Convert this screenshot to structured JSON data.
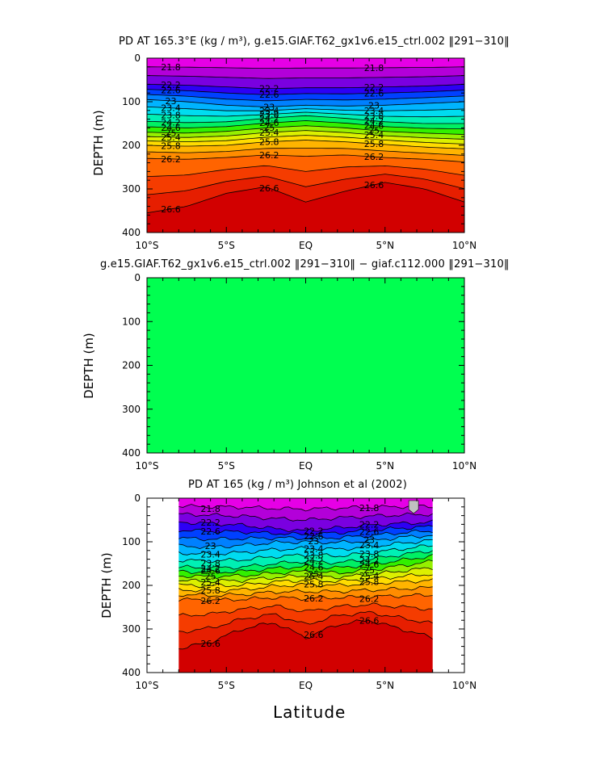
{
  "panels": [
    {
      "title": "PD AT 165.3°E (kg / m³), g.e15.GIAF.T62_gx1v6.e15_ctrl.002 ‖291−310‖",
      "ylabel": "DEPTH (m)",
      "xticks": [
        "10°S",
        "5°S",
        "EQ",
        "5°N",
        "10°N"
      ],
      "yticks": [
        "0",
        "100",
        "200",
        "300",
        "400"
      ]
    },
    {
      "title": "g.e15.GIAF.T62_gx1v6.e15_ctrl.002 ‖291−310‖ − giaf.c112.000 ‖291−310‖",
      "ylabel": "DEPTH (m)",
      "xticks": [
        "10°S",
        "5°S",
        "EQ",
        "5°N",
        "10°N"
      ],
      "yticks": [
        "0",
        "100",
        "200",
        "300",
        "400"
      ]
    },
    {
      "title": "PD AT 165 (kg / m³) Johnson et al (2002)",
      "ylabel": "DEPTH (m)",
      "xticks": [
        "10°S",
        "5°S",
        "EQ",
        "5°N",
        "10°N"
      ],
      "yticks": [
        "0",
        "100",
        "200",
        "300",
        "400"
      ]
    }
  ],
  "xlabel": "Latitude",
  "colors": {
    "levels": [
      "#e600e6",
      "#b300d9",
      "#7a00e0",
      "#2d00f5",
      "#0040ff",
      "#0080ff",
      "#00b4ff",
      "#00dcf0",
      "#00f0b4",
      "#00f064",
      "#32f000",
      "#96f000",
      "#dcf000",
      "#ffdc00",
      "#ffb400",
      "#ff8c00",
      "#ff6400",
      "#f53c00",
      "#e61e00",
      "#d20000"
    ],
    "difference_fill": "#00ff50",
    "missing": "#c0c0c0"
  },
  "chart_data": [
    {
      "type": "heatmap",
      "title": "PD AT 165.3°E (kg / m³), g.e15.GIAF.T62_gx1v6.e15_ctrl.002 ‖291−310‖",
      "ylabel": "DEPTH (m)",
      "xlim": [
        -10,
        10
      ],
      "ylim": [
        400,
        0
      ],
      "contour_labels": [
        "21.8",
        "22.2",
        "22.6",
        "23",
        "23.4",
        "23.8",
        "24.2",
        "24.6",
        "25",
        "25.4",
        "25.8",
        "26.2",
        "26.6"
      ],
      "isopycnal_depths": {
        "x": [
          -10,
          -7.5,
          -5,
          -2.5,
          0,
          2.5,
          5,
          7.5,
          10
        ],
        "22.2": [
          60,
          62,
          66,
          70,
          68,
          68,
          66,
          64,
          60
        ],
        "23": [
          95,
          100,
          108,
          112,
          108,
          110,
          108,
          104,
          100
        ],
        "24.2": [
          145,
          148,
          146,
          138,
          132,
          138,
          146,
          150,
          150
        ],
        "25": [
          170,
          172,
          168,
          160,
          155,
          160,
          168,
          172,
          175
        ],
        "25.8": [
          200,
          202,
          200,
          192,
          188,
          192,
          198,
          204,
          208
        ],
        "26.2": [
          230,
          232,
          228,
          222,
          225,
          222,
          228,
          232,
          238
        ],
        "26.6": [
          355,
          340,
          310,
          295,
          330,
          305,
          285,
          300,
          330
        ]
      }
    },
    {
      "type": "heatmap",
      "title": "g.e15.GIAF.T62_gx1v6.e15_ctrl.002 ‖291−310‖ − giaf.c112.000 ‖291−310‖",
      "ylabel": "DEPTH (m)",
      "xlim": [
        -10,
        10
      ],
      "ylim": [
        400,
        0
      ],
      "values": "uniform difference field"
    },
    {
      "type": "heatmap",
      "title": "PD AT 165 (kg / m³) Johnson et al (2002)",
      "xlabel": "Latitude",
      "ylabel": "DEPTH (m)",
      "xlim": [
        -10,
        10
      ],
      "ylim": [
        400,
        0
      ],
      "data_xrange": [
        -8,
        8
      ],
      "contour_labels": [
        "21.8",
        "22.2",
        "22.6",
        "23",
        "23.4",
        "23.8",
        "24.2",
        "24.6",
        "25",
        "25.4",
        "25.8",
        "26.2",
        "26.6"
      ],
      "isopycnal_depths": {
        "x": [
          -8,
          -6,
          -4,
          -2,
          0,
          2,
          4,
          6,
          8
        ],
        "22.2": [
          55,
          58,
          62,
          70,
          75,
          68,
          62,
          58,
          55
        ],
        "23": [
          110,
          112,
          108,
          102,
          100,
          102,
          98,
          90,
          85
        ],
        "24.2": [
          158,
          160,
          158,
          150,
          145,
          148,
          140,
          130,
          120
        ],
        "25": [
          178,
          180,
          178,
          172,
          168,
          172,
          165,
          155,
          145
        ],
        "25.8": [
          210,
          212,
          210,
          202,
          198,
          200,
          196,
          192,
          188
        ],
        "26.2": [
          232,
          234,
          232,
          228,
          230,
          228,
          226,
          224,
          222
        ],
        "26.6": [
          345,
          330,
          300,
          285,
          320,
          290,
          280,
          300,
          320
        ]
      }
    }
  ]
}
